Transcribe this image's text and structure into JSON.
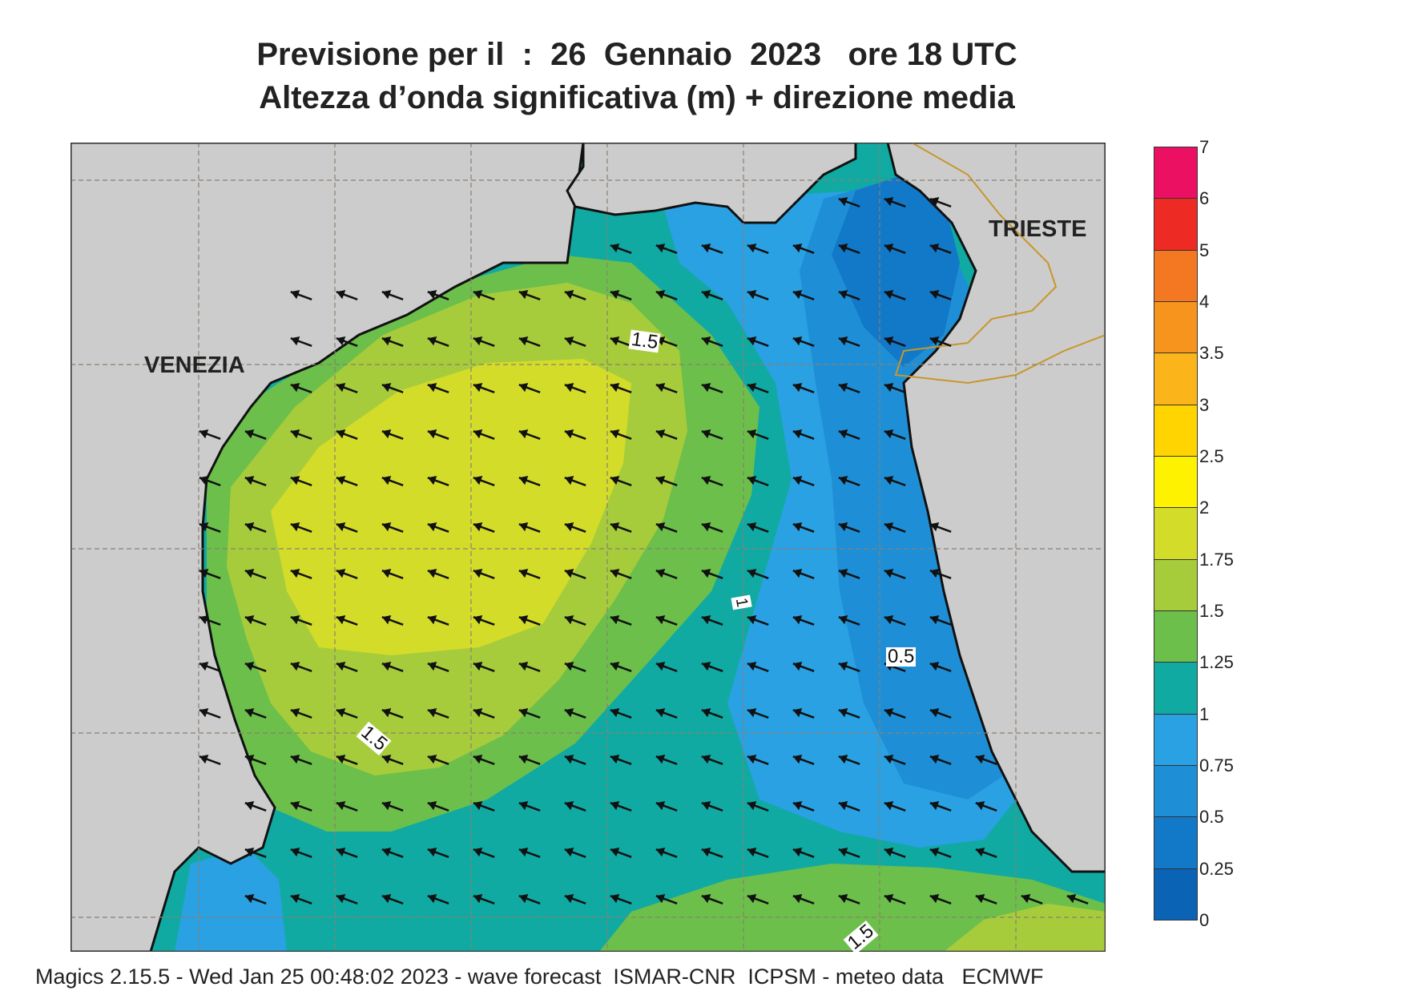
{
  "title": {
    "line1": "Previsione per il  :  26  Gennaio  2023   ore 18 UTC",
    "line2": "Altezza d’onda significativa (m) + direzione media"
  },
  "cities": {
    "venezia": "VENEZIA",
    "trieste": "TRIESTE"
  },
  "contour_labels": [
    "1.5",
    "1",
    "0.5",
    "1.5",
    "1.5"
  ],
  "legend": {
    "levels": [
      "0",
      "0.25",
      "0.5",
      "0.75",
      "1",
      "1.25",
      "1.5",
      "1.75",
      "2",
      "2.5",
      "3",
      "3.5",
      "4",
      "5",
      "6",
      "7"
    ],
    "colors": [
      "#0a63b5",
      "#1278c8",
      "#1e8fd6",
      "#2aa1e2",
      "#10aaa3",
      "#6cbf4a",
      "#a6cc3c",
      "#d4dc2a",
      "#fff200",
      "#ffd400",
      "#fbb41a",
      "#f7941d",
      "#f47721",
      "#ee2a24",
      "#ec1063"
    ]
  },
  "footer": "Magics 2.15.5 - Wed Jan 25 00:48:02 2023 - wave forecast  ISMAR-CNR  ICPSM - meteo data   ECMWF"
}
